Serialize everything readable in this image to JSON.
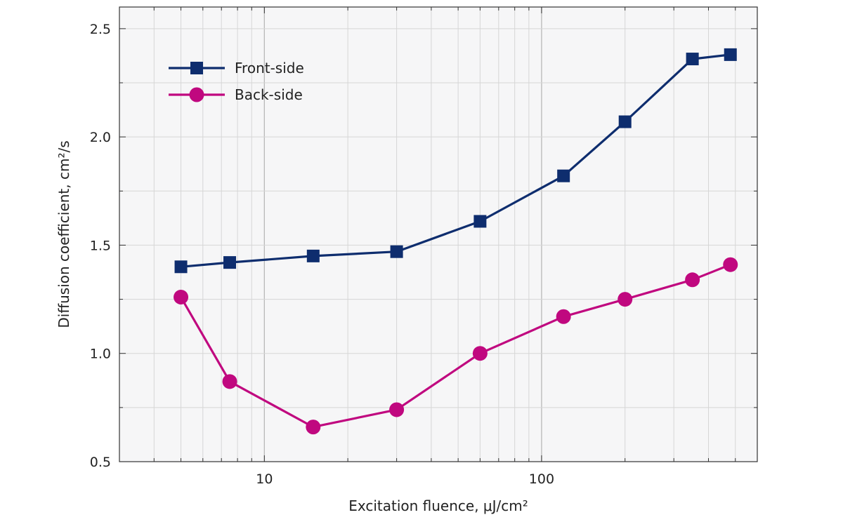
{
  "chart_data": {
    "type": "line",
    "xlabel": "Excitation fluence, μJ/cm²",
    "ylabel": "Diffusion coefficient, cm²/s",
    "xscale": "log",
    "xlim": [
      3,
      600
    ],
    "ylim": [
      0.5,
      2.6
    ],
    "grid": true,
    "legend_position": "top-left",
    "x_ticks": [
      10,
      100
    ],
    "x_tick_labels": [
      "10",
      "100"
    ],
    "y_ticks": [
      0.5,
      1.0,
      1.5,
      2.0,
      2.5
    ],
    "y_tick_labels": [
      "0.5",
      "1.0",
      "1.5",
      "2.0",
      "2.5"
    ],
    "x": [
      5,
      7.5,
      15,
      30,
      60,
      120,
      200,
      350,
      480
    ],
    "series": [
      {
        "name": "Front-side",
        "color": "#0e2d6e",
        "marker": "square",
        "values": [
          1.4,
          1.42,
          1.45,
          1.47,
          1.61,
          1.82,
          2.07,
          2.36,
          2.38
        ]
      },
      {
        "name": "Back-side",
        "color": "#c0087f",
        "marker": "circle",
        "values": [
          1.26,
          0.87,
          0.66,
          0.74,
          1.0,
          1.17,
          1.25,
          1.34,
          1.41
        ]
      }
    ],
    "colors": {
      "plot_background": "#f6f6f7",
      "grid": "#d6d6d6",
      "axis": "#333333"
    }
  }
}
